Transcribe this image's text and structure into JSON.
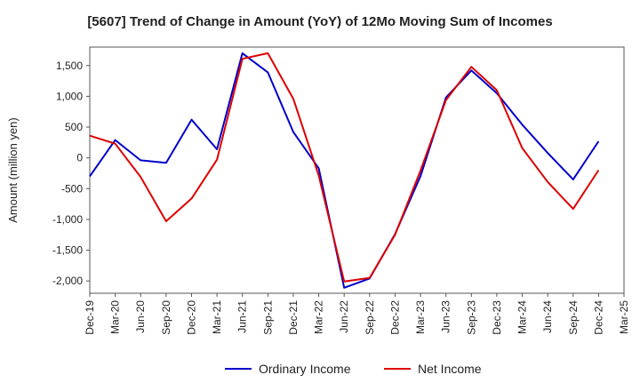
{
  "chart_data": {
    "type": "line",
    "title": "[5607]  Trend of Change in Amount (YoY) of 12Mo Moving Sum of Incomes",
    "xlabel": "",
    "ylabel": "Amount (million yen)",
    "x": [
      "Dec-19",
      "Mar-20",
      "Jun-20",
      "Sep-20",
      "Dec-20",
      "Mar-21",
      "Jun-21",
      "Sep-21",
      "Dec-21",
      "Mar-22",
      "Jun-22",
      "Sep-22",
      "Dec-22",
      "Mar-23",
      "Jun-23",
      "Sep-23",
      "Dec-23",
      "Mar-24",
      "Jun-24",
      "Sep-24",
      "Dec-24",
      "Mar-25"
    ],
    "ylim": [
      -2200,
      1800
    ],
    "yticks": [
      -2000,
      -1500,
      -1000,
      -500,
      0,
      500,
      1000,
      1500
    ],
    "ytick_labels": [
      "-2,000",
      "-1,500",
      "-1,000",
      "-500",
      "0",
      "500",
      "1,000",
      "1,500"
    ],
    "grid": true,
    "legend_position": "bottom-center",
    "series": [
      {
        "name": "Ordinary Income",
        "color": "#0000cc",
        "values": [
          -300,
          290,
          -40,
          -80,
          620,
          140,
          1700,
          1390,
          420,
          -170,
          -2110,
          -1960,
          -1240,
          -300,
          980,
          1420,
          1050,
          540,
          80,
          -350,
          270,
          null
        ]
      },
      {
        "name": "Net Income",
        "color": "#dd0000",
        "values": [
          360,
          230,
          -310,
          -1030,
          -660,
          -30,
          1610,
          1700,
          960,
          -290,
          -2010,
          -1950,
          -1250,
          -210,
          940,
          1480,
          1100,
          160,
          -390,
          -830,
          -200,
          null
        ]
      }
    ]
  }
}
